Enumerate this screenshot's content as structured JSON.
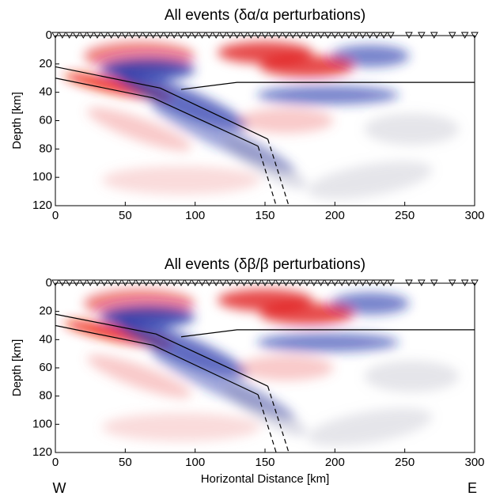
{
  "chart_data": [
    {
      "type": "section",
      "title": "All events (δα/α perturbations)",
      "ylabel": "Depth [km]",
      "xlim": [
        0,
        300
      ],
      "ylim": [
        0,
        120
      ],
      "yreverse": true,
      "xticks": [
        0,
        50,
        100,
        150,
        200,
        250,
        300
      ],
      "yticks": [
        0,
        20,
        40,
        60,
        80,
        100,
        120
      ],
      "stations": [
        0,
        5,
        10,
        15,
        20,
        25,
        30,
        35,
        40,
        45,
        50,
        55,
        60,
        65,
        70,
        75,
        80,
        85,
        90,
        95,
        100,
        105,
        110,
        115,
        120,
        125,
        130,
        135,
        140,
        145,
        150,
        155,
        160,
        165,
        170,
        175,
        180,
        185,
        190,
        195,
        200,
        205,
        210,
        215,
        220,
        225,
        230,
        235,
        240,
        253,
        262,
        271,
        284,
        293,
        300
      ],
      "series": [
        {
          "color": "#000000",
          "dash": false,
          "x": [
            0,
            75,
            152
          ],
          "values": [
            22,
            37,
            73
          ]
        },
        {
          "color": "#000000",
          "dash": true,
          "x": [
            152,
            167
          ],
          "values": [
            73,
            120
          ]
        },
        {
          "color": "#000000",
          "dash": false,
          "x": [
            0,
            70,
            145
          ],
          "values": [
            30,
            44,
            78
          ]
        },
        {
          "color": "#000000",
          "dash": true,
          "x": [
            145,
            158
          ],
          "values": [
            78,
            120
          ]
        },
        {
          "color": "#000000",
          "dash": false,
          "x": [
            90,
            130,
            300
          ],
          "values": [
            38,
            33,
            33
          ]
        }
      ]
    },
    {
      "type": "section",
      "title": "All events (δβ/β perturbations)",
      "ylabel": "Depth [km]",
      "xlabel": "Horizontal Distance [km]",
      "annotations": [
        "W",
        "E"
      ],
      "xlim": [
        0,
        300
      ],
      "ylim": [
        0,
        120
      ],
      "yreverse": true,
      "xticks": [
        0,
        50,
        100,
        150,
        200,
        250,
        300
      ],
      "yticks": [
        0,
        20,
        40,
        60,
        80,
        100,
        120
      ],
      "stations": [
        0,
        5,
        10,
        15,
        20,
        25,
        30,
        35,
        40,
        45,
        50,
        55,
        60,
        65,
        70,
        75,
        80,
        85,
        90,
        95,
        100,
        105,
        110,
        115,
        120,
        125,
        130,
        135,
        140,
        145,
        150,
        155,
        160,
        165,
        170,
        175,
        180,
        185,
        190,
        195,
        200,
        205,
        210,
        215,
        220,
        225,
        230,
        235,
        240,
        253,
        262,
        271,
        284,
        293,
        300
      ],
      "series": [
        {
          "color": "#000000",
          "dash": false,
          "x": [
            0,
            72,
            152
          ],
          "values": [
            22,
            36,
            73
          ]
        },
        {
          "color": "#000000",
          "dash": true,
          "x": [
            152,
            167
          ],
          "values": [
            73,
            120
          ]
        },
        {
          "color": "#000000",
          "dash": false,
          "x": [
            0,
            70,
            145
          ],
          "values": [
            30,
            44,
            79
          ]
        },
        {
          "color": "#000000",
          "dash": true,
          "x": [
            145,
            158
          ],
          "values": [
            79,
            120
          ]
        },
        {
          "color": "#000000",
          "dash": false,
          "x": [
            90,
            130,
            300
          ],
          "values": [
            38,
            33,
            33
          ]
        }
      ]
    }
  ]
}
